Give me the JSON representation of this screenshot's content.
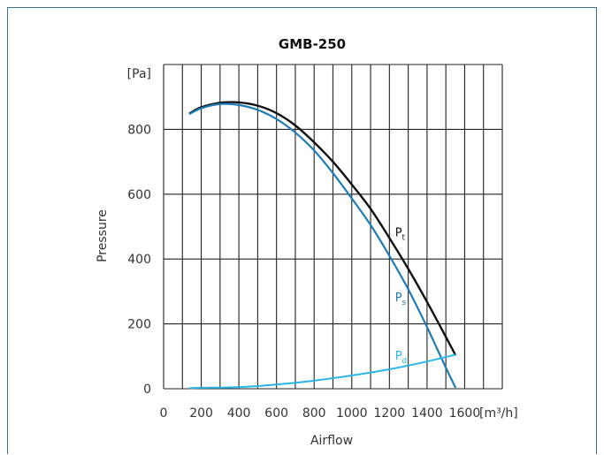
{
  "chart_data": {
    "type": "line",
    "title": "GMB-250",
    "xlabel": "Airflow",
    "ylabel": "Pressure",
    "x_unit": "[m³/h]",
    "y_unit": "[Pa]",
    "xlim": [
      0,
      1800
    ],
    "ylim": [
      0,
      1000
    ],
    "x_ticks": [
      "0",
      "200",
      "400",
      "600",
      "800",
      "1000",
      "1200",
      "1400",
      "1600"
    ],
    "y_ticks": [
      "0",
      "200",
      "400",
      "600",
      "800"
    ],
    "grid": true,
    "colors": {
      "Pt": "#111111",
      "Ps": "#1f7cb4",
      "Pd": "#29b5e8"
    },
    "series": [
      {
        "key": "Pt",
        "name": "Pt",
        "name_base": "P",
        "name_sub": "t",
        "x": [
          140,
          200,
          300,
          400,
          500,
          600,
          700,
          800,
          900,
          1000,
          1100,
          1200,
          1300,
          1400,
          1500,
          1550
        ],
        "y": [
          850,
          868,
          882,
          883,
          873,
          850,
          812,
          760,
          700,
          630,
          555,
          465,
          370,
          268,
          160,
          105
        ]
      },
      {
        "key": "Ps",
        "name": "Ps",
        "name_base": "P",
        "name_sub": "s",
        "x": [
          140,
          200,
          300,
          400,
          500,
          600,
          700,
          800,
          900,
          1000,
          1100,
          1200,
          1300,
          1400,
          1500,
          1550
        ],
        "y": [
          848,
          865,
          878,
          875,
          860,
          832,
          790,
          735,
          665,
          587,
          505,
          410,
          307,
          190,
          65,
          5
        ]
      },
      {
        "key": "Pd",
        "name": "Pd",
        "name_base": "P",
        "name_sub": "d",
        "x": [
          140,
          200,
          400,
          600,
          800,
          1000,
          1200,
          1400,
          1550
        ],
        "y": [
          2,
          3,
          5,
          13,
          25,
          41,
          60,
          84,
          105
        ]
      }
    ]
  }
}
